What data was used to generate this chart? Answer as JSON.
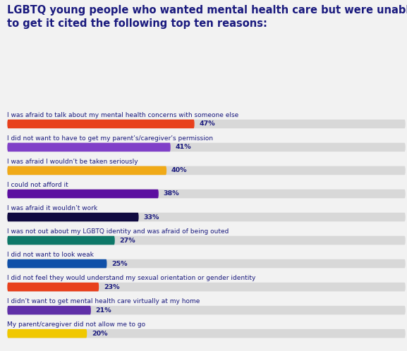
{
  "title_line1": "LGBTQ young people who wanted mental health care but were unable",
  "title_line2": "to get it cited the following top ten reasons:",
  "background_color": "#f2f2f2",
  "title_color": "#1a1a7e",
  "label_color": "#1a1a7e",
  "value_color": "#1a1a7e",
  "bar_bg_color": "#d8d8d8",
  "categories": [
    "I was afraid to talk about my mental health concerns with someone else",
    "I did not want to have to get my parent’s/caregiver’s permission",
    "I was afraid I wouldn’t be taken seriously",
    "I could not afford it",
    "I was afraid it wouldn’t work",
    "I was not out about my LGBTQ identity and was afraid of being outed",
    "I did not want to look weak",
    "I did not feel they would understand my sexual orientation or gender identity",
    "I didn’t want to get mental health care virtually at my home",
    "My parent/caregiver did not allow me to go"
  ],
  "values": [
    47,
    41,
    40,
    38,
    33,
    27,
    25,
    23,
    21,
    20
  ],
  "bar_colors": [
    "#e8401c",
    "#8040c8",
    "#f0aa18",
    "#5c0fa0",
    "#100a40",
    "#0e7868",
    "#1050a8",
    "#e8401c",
    "#6030a8",
    "#f0c800"
  ],
  "max_value": 100,
  "label_fontsize": 6.5,
  "value_fontsize": 6.8,
  "title_fontsize": 10.5
}
